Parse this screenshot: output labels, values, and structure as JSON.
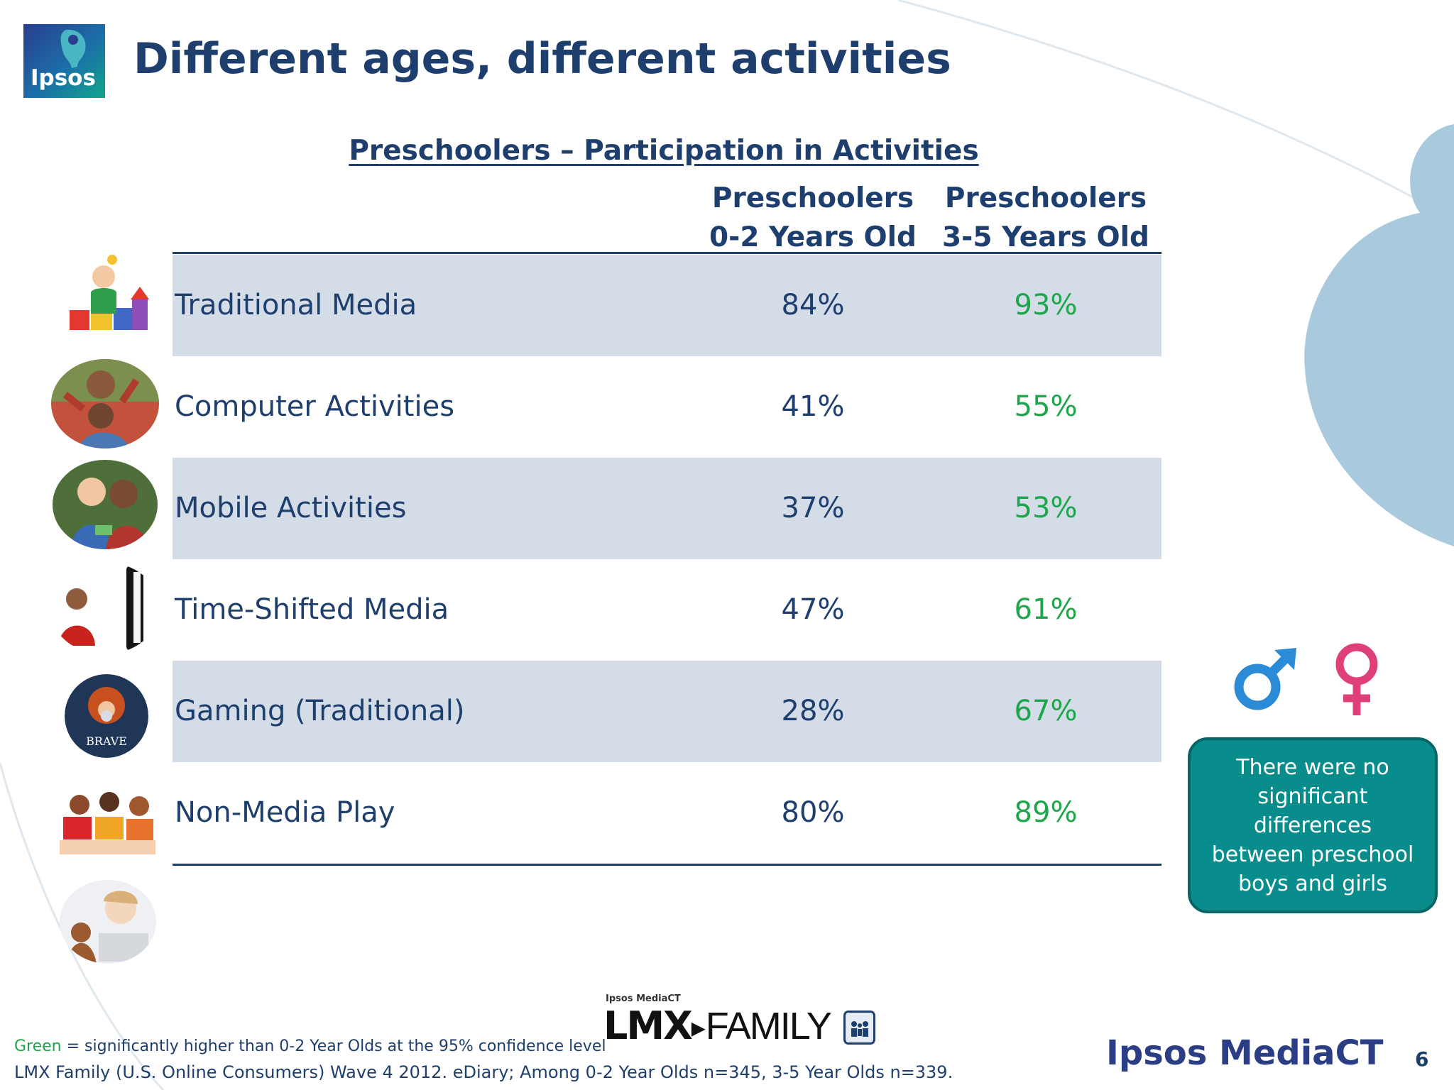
{
  "brand": {
    "logo_text": "Ipsos"
  },
  "title": "Different ages, different activities",
  "table": {
    "caption": "Preschoolers – Participation in Activities",
    "columns": [
      {
        "line1": "Preschoolers",
        "line2": "0-2 Years Old"
      },
      {
        "line1": "Preschoolers",
        "line2": "3-5 Years Old"
      }
    ],
    "rows": [
      {
        "label": "Traditional Media",
        "v1": "84%",
        "v2": "93%"
      },
      {
        "label": "Computer Activities",
        "v1": "41%",
        "v2": "55%"
      },
      {
        "label": "Mobile Activities",
        "v1": "37%",
        "v2": "53%"
      },
      {
        "label": "Time-Shifted Media",
        "v1": "47%",
        "v2": "61%"
      },
      {
        "label": "Gaming (Traditional)",
        "v1": "28%",
        "v2": "67%"
      },
      {
        "label": "Non-Media Play",
        "v1": "80%",
        "v2": "89%"
      }
    ]
  },
  "note": "There were no significant differences between preschool boys and girls",
  "footnotes": {
    "green_word": "Green",
    "significance": " = significantly higher than 0-2 Year Olds at the 95% confidence level",
    "source": "LMX Family (U.S. Online Consumers) Wave 4 2012.  eDiary; Among 0-2 Year Olds n=345, 3-5 Year Olds n=339."
  },
  "lmx_logo": {
    "small": "Ipsos MediaCT",
    "bold": "LMX",
    "rest": "FAMILY"
  },
  "footer_brand": "Ipsos MediaCT",
  "page_number": "6",
  "colors": {
    "title": "#1e3f6e",
    "significant_green": "#1fa54b",
    "row_shade": "#d3dce7",
    "note_box": "#098c8c",
    "male_symbol": "#2b8bd6",
    "female_symbol": "#e0407a",
    "deco_blue": "#a9c9dc"
  },
  "icons": [
    "male-symbol-icon",
    "female-symbol-icon",
    "lmx-family-icon"
  ]
}
